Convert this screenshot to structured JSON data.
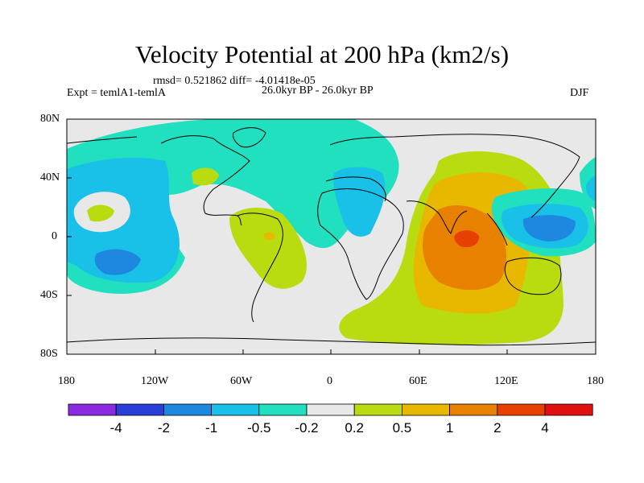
{
  "title": "Velocity Potential at 200 hPa (km2/s)",
  "stats": "rmsd= 0.521862 diff= -4.01418e-05",
  "left_label": "Expt = temlA1-temlA",
  "center_label": "26.0kyr BP - 26.0kyr BP",
  "right_label": "DJF",
  "lat_labels": [
    "80N",
    "40N",
    "0",
    "40S",
    "80S"
  ],
  "lon_labels": [
    "180",
    "120W",
    "60W",
    "0",
    "60E",
    "120E",
    "180"
  ],
  "colorbar": {
    "colors": [
      "#8a2be2",
      "#2a3fd8",
      "#1e88e0",
      "#19c0e8",
      "#20e0c0",
      "#e8e8e8",
      "#b8dc10",
      "#e8b800",
      "#e88000",
      "#e84000",
      "#e01010"
    ],
    "labels": [
      "-4",
      "-2",
      "-1",
      "-0.5",
      "-0.2",
      "0.2",
      "0.5",
      "1",
      "2",
      "4"
    ]
  },
  "map_colors": {
    "neutral": "#e8e8e8",
    "neg02": "#20e0c0",
    "neg05": "#19c0e8",
    "neg1": "#1e88e0",
    "pos02": "#b8dc10",
    "pos05": "#e8b800",
    "pos1": "#e88000",
    "pos2": "#e84000"
  }
}
